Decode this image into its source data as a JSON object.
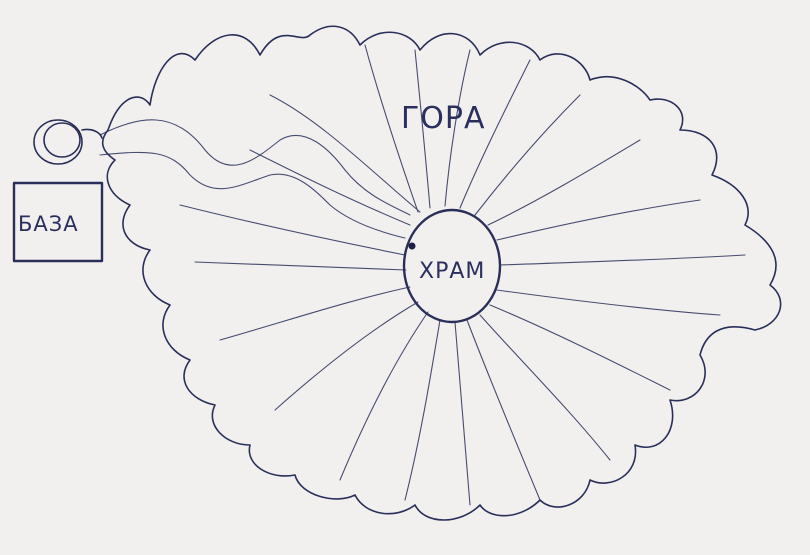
{
  "diagram": {
    "mountain_label": "ГОРА",
    "temple_label": "ХРАМ",
    "base_label": "БАЗА"
  },
  "colors": {
    "paper": "#f1f0ee",
    "ink": "#2a2f5a"
  }
}
